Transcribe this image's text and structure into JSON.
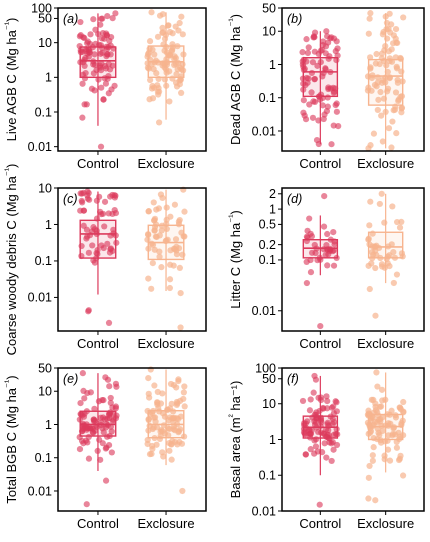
{
  "figure": {
    "rows": 3,
    "cols": 2,
    "colors": {
      "control": "#dc3a5c",
      "exclosure": "#f7b48f",
      "frame": "#000000"
    }
  },
  "chart_data": [
    {
      "type": "box",
      "panel_label": "(a)",
      "ylabel": "Live AGB C (Mg ha⁻¹)",
      "yscale": "log",
      "ylim": [
        0.0075,
        100
      ],
      "yticks": [
        0.01,
        0.1,
        1,
        10,
        50,
        100
      ],
      "yticklabels": [
        "0.01",
        "0.1",
        "1",
        "10",
        "50",
        "100"
      ],
      "categories": [
        "Control",
        "Exclosure"
      ],
      "series": [
        {
          "name": "Control",
          "color": "#dc3a5c",
          "box": {
            "whisker_low": 0.04,
            "q1": 1.0,
            "median": 3.0,
            "q3": 7.5,
            "whisker_high": 70
          },
          "n_points": 95,
          "range": [
            0.01,
            70
          ]
        },
        {
          "name": "Exclosure",
          "color": "#f7b48f",
          "box": {
            "whisker_low": 0.06,
            "q1": 1.0,
            "median": 2.8,
            "q3": 8.0,
            "whisker_high": 75
          },
          "n_points": 95,
          "range": [
            0.05,
            75
          ]
        }
      ]
    },
    {
      "type": "box",
      "panel_label": "(b)",
      "ylabel": "Dead AGB C (Mg ha⁻¹)",
      "yscale": "log",
      "ylim": [
        0.0025,
        50
      ],
      "yticks": [
        0.01,
        0.1,
        1,
        10,
        50
      ],
      "yticklabels": [
        "0.01",
        "0.1",
        "1",
        "10",
        "50"
      ],
      "categories": [
        "Control",
        "Exclosure"
      ],
      "series": [
        {
          "name": "Control",
          "color": "#dc3a5c",
          "box": {
            "whisker_low": 0.004,
            "q1": 0.11,
            "median": 0.6,
            "q3": 1.6,
            "whisker_high": 10
          },
          "n_points": 90,
          "range": [
            0.004,
            10
          ]
        },
        {
          "name": "Exclosure",
          "color": "#f7b48f",
          "box": {
            "whisker_low": 0.003,
            "q1": 0.06,
            "median": 0.45,
            "q3": 1.4,
            "whisker_high": 35
          },
          "n_points": 90,
          "range": [
            0.003,
            35
          ]
        }
      ]
    },
    {
      "type": "box",
      "panel_label": "(c)",
      "ylabel": "Coarse woody debris C (Mg ha⁻¹)",
      "yscale": "log",
      "ylim": [
        0.0012,
        10
      ],
      "yticks": [
        0.01,
        0.1,
        1,
        10
      ],
      "yticklabels": [
        "0.01",
        "0.1",
        "1",
        "10"
      ],
      "categories": [
        "Control",
        "Exclosure"
      ],
      "series": [
        {
          "name": "Control",
          "color": "#dc3a5c",
          "box": {
            "whisker_low": 0.012,
            "q1": 0.12,
            "median": 0.55,
            "q3": 1.3,
            "whisker_high": 8
          },
          "n_points": 65,
          "range": [
            0.002,
            8
          ]
        },
        {
          "name": "Exclosure",
          "color": "#f7b48f",
          "box": {
            "whisker_low": 0.015,
            "q1": 0.11,
            "median": 0.32,
            "q3": 0.95,
            "whisker_high": 9
          },
          "n_points": 65,
          "range": [
            0.0015,
            9
          ]
        }
      ]
    },
    {
      "type": "box",
      "panel_label": "(d)",
      "ylabel": "Litter C (Mg ha⁻¹)",
      "yscale": "log",
      "ylim": [
        0.004,
        2.6
      ],
      "yticks": [
        0.01,
        0.1,
        0.2,
        0.5,
        1,
        2
      ],
      "yticklabels": [
        "0.01",
        "0.1",
        "0.2",
        "0.5",
        "1",
        "2"
      ],
      "categories": [
        "Control",
        "Exclosure"
      ],
      "series": [
        {
          "name": "Control",
          "color": "#dc3a5c",
          "box": {
            "whisker_low": 0.05,
            "q1": 0.11,
            "median": 0.17,
            "q3": 0.25,
            "whisker_high": 0.75
          },
          "n_points": 40,
          "range": [
            0.005,
            1.8
          ]
        },
        {
          "name": "Exclosure",
          "color": "#f7b48f",
          "box": {
            "whisker_low": 0.035,
            "q1": 0.11,
            "median": 0.18,
            "q3": 0.35,
            "whisker_high": 2.0
          },
          "n_points": 45,
          "range": [
            0.008,
            2.0
          ]
        }
      ]
    },
    {
      "type": "box",
      "panel_label": "(e)",
      "ylabel": "Total BGB C (Mg ha⁻¹)",
      "yscale": "log",
      "ylim": [
        0.0025,
        50
      ],
      "yticks": [
        0.01,
        0.1,
        1,
        10,
        50
      ],
      "yticklabels": [
        "0.01",
        "0.1",
        "1",
        "10",
        "50"
      ],
      "categories": [
        "Control",
        "Exclosure"
      ],
      "series": [
        {
          "name": "Control",
          "color": "#dc3a5c",
          "box": {
            "whisker_low": 0.04,
            "q1": 0.45,
            "median": 1.0,
            "q3": 2.5,
            "whisker_high": 35
          },
          "n_points": 95,
          "range": [
            0.004,
            35
          ]
        },
        {
          "name": "Exclosure",
          "color": "#f7b48f",
          "box": {
            "whisker_low": 0.06,
            "q1": 0.4,
            "median": 1.0,
            "q3": 2.6,
            "whisker_high": 45
          },
          "n_points": 95,
          "range": [
            0.01,
            45
          ]
        }
      ]
    },
    {
      "type": "box",
      "panel_label": "(f)",
      "ylabel": "Basal area (m² ha⁻¹)",
      "yscale": "log",
      "ylim": [
        0.01,
        100
      ],
      "yticks": [
        0.01,
        0.1,
        1,
        10,
        50,
        100
      ],
      "yticklabels": [
        "0.01",
        "0.1",
        "1",
        "10",
        "50",
        "100"
      ],
      "categories": [
        "Control",
        "Exclosure"
      ],
      "series": [
        {
          "name": "Control",
          "color": "#dc3a5c",
          "box": {
            "whisker_low": 0.1,
            "q1": 1.1,
            "median": 2.2,
            "q3": 4.5,
            "whisker_high": 60
          },
          "n_points": 95,
          "range": [
            0.015,
            60
          ]
        },
        {
          "name": "Exclosure",
          "color": "#f7b48f",
          "box": {
            "whisker_low": 0.12,
            "q1": 1.0,
            "median": 2.3,
            "q3": 5.0,
            "whisker_high": 75
          },
          "n_points": 95,
          "range": [
            0.02,
            75
          ]
        }
      ]
    }
  ]
}
